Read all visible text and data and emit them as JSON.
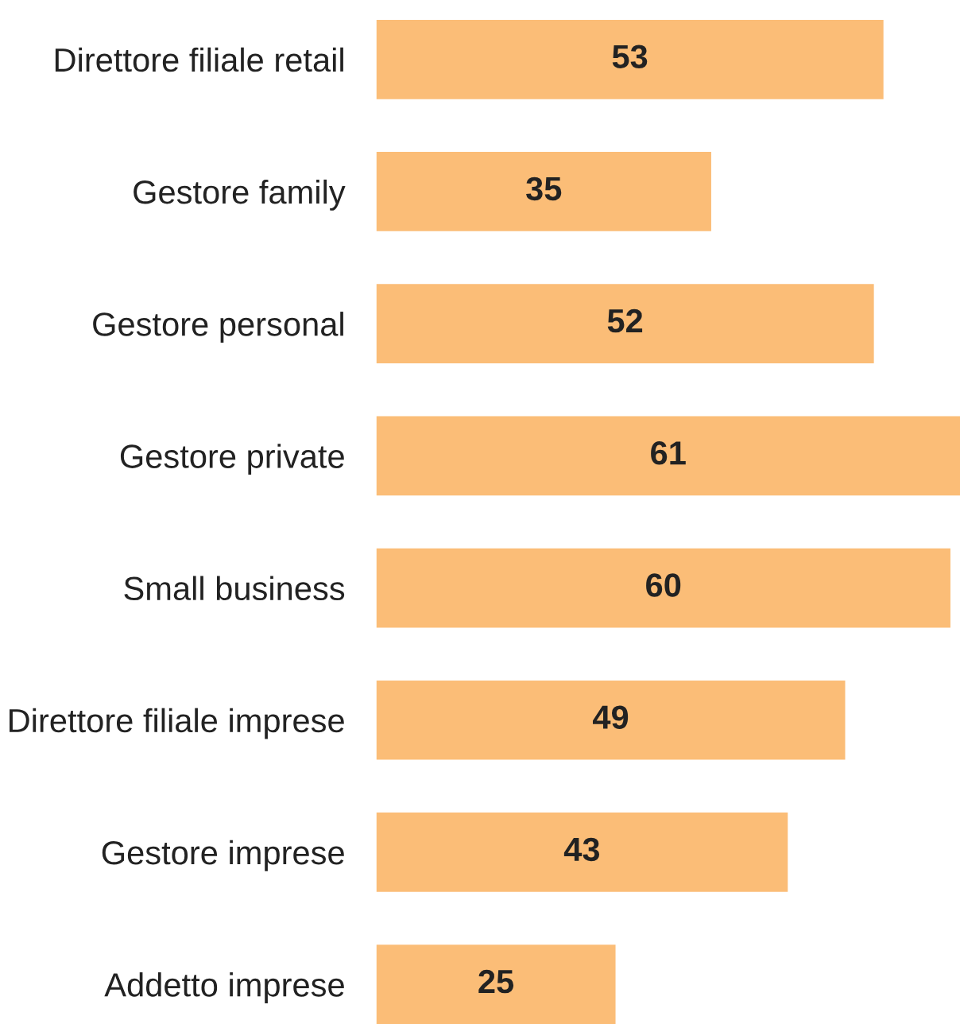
{
  "chart_data": {
    "type": "bar",
    "orientation": "horizontal",
    "categories": [
      "Direttore filiale retail",
      "Gestore family",
      "Gestore personal",
      "Gestore private",
      "Small business",
      "Direttore filiale imprese",
      "Gestore imprese",
      "Addetto imprese"
    ],
    "values": [
      53,
      35,
      52,
      61,
      60,
      49,
      43,
      25
    ],
    "color": "#fbbd77",
    "data_labels": true,
    "tick_labels": "y",
    "grid": false,
    "legend": false
  }
}
